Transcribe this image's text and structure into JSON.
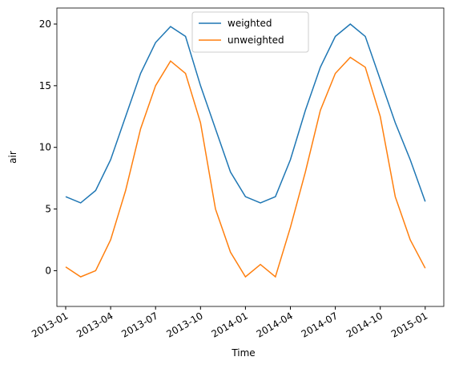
{
  "chart_data": {
    "type": "line",
    "xlabel": "Time",
    "ylabel": "air",
    "x": [
      "2013-01",
      "2013-02",
      "2013-03",
      "2013-04",
      "2013-05",
      "2013-06",
      "2013-07",
      "2013-08",
      "2013-09",
      "2013-10",
      "2013-11",
      "2013-12",
      "2014-01",
      "2014-02",
      "2014-03",
      "2014-04",
      "2014-05",
      "2014-06",
      "2014-07",
      "2014-08",
      "2014-09",
      "2014-10",
      "2014-11",
      "2014-12",
      "2015-01"
    ],
    "series": [
      {
        "name": "weighted",
        "color": "#1f77b4",
        "values": [
          6.0,
          5.5,
          6.5,
          9.0,
          12.5,
          16.0,
          18.5,
          19.8,
          19.0,
          15.0,
          11.5,
          8.0,
          6.0,
          5.5,
          6.0,
          9.0,
          13.0,
          16.5,
          19.0,
          20.0,
          19.0,
          15.5,
          12.0,
          9.0,
          5.6
        ]
      },
      {
        "name": "unweighted",
        "color": "#ff7f0e",
        "values": [
          0.3,
          -0.5,
          0.0,
          2.5,
          6.5,
          11.5,
          15.0,
          17.0,
          16.0,
          12.0,
          5.0,
          1.5,
          -0.5,
          0.5,
          -0.5,
          3.5,
          8.0,
          13.0,
          16.0,
          17.3,
          16.5,
          12.5,
          6.0,
          2.5,
          0.2
        ]
      }
    ],
    "ylim": [
      -2.9,
      21.3
    ],
    "yticks": [
      0,
      5,
      10,
      15,
      20
    ],
    "xticks": [
      "2013-01",
      "2013-04",
      "2013-07",
      "2013-10",
      "2014-01",
      "2014-04",
      "2014-07",
      "2014-10",
      "2015-01"
    ],
    "legend": "upper center",
    "grid": false
  }
}
